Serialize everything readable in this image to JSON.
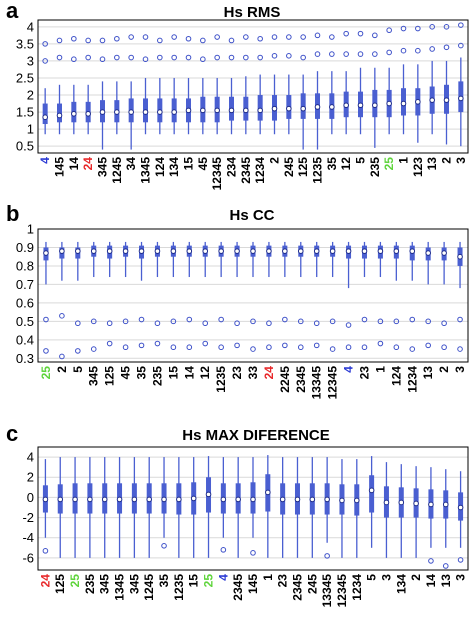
{
  "colors": {
    "box": "#4a5fd1",
    "outlier": "#3f52c9",
    "median_edge": "#1f2d8a",
    "highlight_red": "#e8282a",
    "highlight_green": "#5fd43c",
    "highlight_blue": "#2a39d4",
    "normal_label": "#000000"
  },
  "chart_data": [
    {
      "type": "box",
      "panel_letter": "a",
      "title": "Hs RMS",
      "ylim": [
        0.3,
        4.2
      ],
      "yticks": [
        0.5,
        1,
        1.5,
        2,
        2.5,
        3,
        3.5,
        4
      ],
      "grid": true,
      "categories": [
        "4",
        "145",
        "14",
        "24",
        "345",
        "1245",
        "34",
        "1345",
        "124",
        "134",
        "15",
        "45",
        "12345",
        "234",
        "2345",
        "1234",
        "2",
        "245",
        "125",
        "1235",
        "35",
        "12",
        "5",
        "235",
        "25",
        "1",
        "123",
        "13",
        "2",
        "3"
      ],
      "label_highlights": {
        "4": "blue",
        "24": "red",
        "25": "green"
      },
      "boxes": [
        {
          "wlo": 0.85,
          "q1": 1.15,
          "med": 1.35,
          "q3": 1.75,
          "whi": 2.2,
          "outliers": [
            3.0,
            3.5
          ]
        },
        {
          "wlo": 0.85,
          "q1": 1.2,
          "med": 1.4,
          "q3": 1.75,
          "whi": 2.3,
          "outliers": [
            3.1,
            3.6
          ]
        },
        {
          "wlo": 0.85,
          "q1": 1.2,
          "med": 1.45,
          "q3": 1.8,
          "whi": 2.3,
          "outliers": [
            3.05,
            3.65
          ]
        },
        {
          "wlo": 0.85,
          "q1": 1.2,
          "med": 1.45,
          "q3": 1.8,
          "whi": 2.3,
          "outliers": [
            3.1,
            3.6
          ]
        },
        {
          "wlo": 0.4,
          "q1": 1.2,
          "med": 1.5,
          "q3": 1.85,
          "whi": 2.4,
          "outliers": [
            3.05,
            3.6
          ]
        },
        {
          "wlo": 0.85,
          "q1": 1.2,
          "med": 1.5,
          "q3": 1.85,
          "whi": 2.4,
          "outliers": [
            3.1,
            3.65
          ]
        },
        {
          "wlo": 0.4,
          "q1": 1.2,
          "med": 1.5,
          "q3": 1.9,
          "whi": 2.4,
          "outliers": [
            3.1,
            3.7
          ]
        },
        {
          "wlo": 0.85,
          "q1": 1.2,
          "med": 1.5,
          "q3": 1.9,
          "whi": 2.5,
          "outliers": [
            3.05,
            3.7
          ]
        },
        {
          "wlo": 0.85,
          "q1": 1.2,
          "med": 1.5,
          "q3": 1.9,
          "whi": 2.5,
          "outliers": [
            3.1,
            3.6
          ]
        },
        {
          "wlo": 0.85,
          "q1": 1.2,
          "med": 1.5,
          "q3": 1.9,
          "whi": 2.5,
          "outliers": [
            3.1,
            3.7
          ]
        },
        {
          "wlo": 0.85,
          "q1": 1.2,
          "med": 1.55,
          "q3": 1.9,
          "whi": 2.5,
          "outliers": [
            3.1,
            3.65
          ]
        },
        {
          "wlo": 0.85,
          "q1": 1.2,
          "med": 1.55,
          "q3": 1.95,
          "whi": 2.5,
          "outliers": [
            3.05,
            3.6
          ]
        },
        {
          "wlo": 0.85,
          "q1": 1.2,
          "med": 1.55,
          "q3": 1.95,
          "whi": 2.5,
          "outliers": [
            3.1,
            3.7
          ]
        },
        {
          "wlo": 0.85,
          "q1": 1.25,
          "med": 1.55,
          "q3": 1.95,
          "whi": 2.5,
          "outliers": [
            3.1,
            3.6
          ]
        },
        {
          "wlo": 0.85,
          "q1": 1.25,
          "med": 1.55,
          "q3": 1.95,
          "whi": 2.55,
          "outliers": [
            3.1,
            3.7
          ]
        },
        {
          "wlo": 0.85,
          "q1": 1.25,
          "med": 1.55,
          "q3": 2.0,
          "whi": 2.6,
          "outliers": [
            3.1,
            3.65
          ]
        },
        {
          "wlo": 0.85,
          "q1": 1.25,
          "med": 1.6,
          "q3": 2.0,
          "whi": 2.6,
          "outliers": [
            3.15,
            3.7
          ]
        },
        {
          "wlo": 0.85,
          "q1": 1.3,
          "med": 1.6,
          "q3": 2.0,
          "whi": 2.6,
          "outliers": [
            3.15,
            3.7
          ]
        },
        {
          "wlo": 0.4,
          "q1": 1.3,
          "med": 1.6,
          "q3": 2.05,
          "whi": 2.6,
          "outliers": [
            3.1,
            3.7
          ]
        },
        {
          "wlo": 0.4,
          "q1": 1.3,
          "med": 1.65,
          "q3": 2.05,
          "whi": 2.7,
          "outliers": [
            3.2,
            3.75
          ]
        },
        {
          "wlo": 0.85,
          "q1": 1.3,
          "med": 1.65,
          "q3": 2.05,
          "whi": 2.7,
          "outliers": [
            3.2,
            3.7
          ]
        },
        {
          "wlo": 0.85,
          "q1": 1.35,
          "med": 1.7,
          "q3": 2.1,
          "whi": 2.7,
          "outliers": [
            3.2,
            3.8
          ]
        },
        {
          "wlo": 0.85,
          "q1": 1.35,
          "med": 1.7,
          "q3": 2.1,
          "whi": 2.8,
          "outliers": [
            3.2,
            3.8
          ]
        },
        {
          "wlo": 0.45,
          "q1": 1.35,
          "med": 1.7,
          "q3": 2.15,
          "whi": 2.8,
          "outliers": [
            3.2,
            3.75
          ]
        },
        {
          "wlo": 0.85,
          "q1": 1.35,
          "med": 1.75,
          "q3": 2.15,
          "whi": 2.8,
          "outliers": [
            3.25,
            3.9
          ]
        },
        {
          "wlo": 0.85,
          "q1": 1.4,
          "med": 1.75,
          "q3": 2.2,
          "whi": 2.9,
          "outliers": [
            3.3,
            3.95
          ]
        },
        {
          "wlo": 0.6,
          "q1": 1.4,
          "med": 1.8,
          "q3": 2.2,
          "whi": 2.9,
          "outliers": [
            3.3,
            3.95
          ]
        },
        {
          "wlo": 0.85,
          "q1": 1.45,
          "med": 1.85,
          "q3": 2.25,
          "whi": 3.0,
          "outliers": [
            3.35,
            4.0
          ]
        },
        {
          "wlo": 0.55,
          "q1": 1.45,
          "med": 1.85,
          "q3": 2.3,
          "whi": 3.0,
          "outliers": [
            3.4,
            4.0
          ]
        },
        {
          "wlo": 0.5,
          "q1": 1.5,
          "med": 1.9,
          "q3": 2.4,
          "whi": 3.1,
          "outliers": [
            3.45,
            4.05
          ]
        }
      ]
    },
    {
      "type": "box",
      "panel_letter": "b",
      "title": "Hs CC",
      "ylim": [
        0.28,
        1.0
      ],
      "yticks": [
        0.3,
        0.4,
        0.5,
        0.6,
        0.7,
        0.8,
        0.9,
        1
      ],
      "grid": true,
      "categories": [
        "25",
        "2",
        "5",
        "345",
        "125",
        "45",
        "35",
        "235",
        "15",
        "14",
        "12",
        "1235",
        "23",
        "33",
        "24",
        "2245",
        "2345",
        "13345",
        "12345",
        "4",
        "23",
        "1",
        "124",
        "1234",
        "13",
        "2",
        "3"
      ],
      "label_highlights": {
        "25": "green",
        "24": "red",
        "4": "blue"
      },
      "boxes": [
        {
          "wlo": 0.7,
          "q1": 0.83,
          "med": 0.87,
          "q3": 0.9,
          "whi": 0.93,
          "outliers": [
            0.51,
            0.34
          ]
        },
        {
          "wlo": 0.72,
          "q1": 0.84,
          "med": 0.88,
          "q3": 0.9,
          "whi": 0.93,
          "outliers": [
            0.53,
            0.31
          ]
        },
        {
          "wlo": 0.72,
          "q1": 0.84,
          "med": 0.88,
          "q3": 0.9,
          "whi": 0.93,
          "outliers": [
            0.49,
            0.34
          ]
        },
        {
          "wlo": 0.74,
          "q1": 0.85,
          "med": 0.88,
          "q3": 0.91,
          "whi": 0.93,
          "outliers": [
            0.5,
            0.35
          ]
        },
        {
          "wlo": 0.74,
          "q1": 0.84,
          "med": 0.88,
          "q3": 0.91,
          "whi": 0.93,
          "outliers": [
            0.49,
            0.38
          ]
        },
        {
          "wlo": 0.74,
          "q1": 0.85,
          "med": 0.88,
          "q3": 0.91,
          "whi": 0.93,
          "outliers": [
            0.5,
            0.36
          ]
        },
        {
          "wlo": 0.72,
          "q1": 0.84,
          "med": 0.88,
          "q3": 0.91,
          "whi": 0.93,
          "outliers": [
            0.51,
            0.37
          ]
        },
        {
          "wlo": 0.74,
          "q1": 0.85,
          "med": 0.88,
          "q3": 0.91,
          "whi": 0.93,
          "outliers": [
            0.49,
            0.38
          ]
        },
        {
          "wlo": 0.74,
          "q1": 0.85,
          "med": 0.88,
          "q3": 0.91,
          "whi": 0.93,
          "outliers": [
            0.5,
            0.36
          ]
        },
        {
          "wlo": 0.74,
          "q1": 0.85,
          "med": 0.88,
          "q3": 0.91,
          "whi": 0.93,
          "outliers": [
            0.51,
            0.36
          ]
        },
        {
          "wlo": 0.74,
          "q1": 0.85,
          "med": 0.88,
          "q3": 0.91,
          "whi": 0.93,
          "outliers": [
            0.49,
            0.38
          ]
        },
        {
          "wlo": 0.74,
          "q1": 0.85,
          "med": 0.88,
          "q3": 0.91,
          "whi": 0.93,
          "outliers": [
            0.51,
            0.36
          ]
        },
        {
          "wlo": 0.74,
          "q1": 0.85,
          "med": 0.88,
          "q3": 0.91,
          "whi": 0.93,
          "outliers": [
            0.49,
            0.37
          ]
        },
        {
          "wlo": 0.74,
          "q1": 0.85,
          "med": 0.88,
          "q3": 0.91,
          "whi": 0.93,
          "outliers": [
            0.5,
            0.35
          ]
        },
        {
          "wlo": 0.74,
          "q1": 0.85,
          "med": 0.88,
          "q3": 0.91,
          "whi": 0.93,
          "outliers": [
            0.49,
            0.36
          ]
        },
        {
          "wlo": 0.74,
          "q1": 0.85,
          "med": 0.88,
          "q3": 0.91,
          "whi": 0.93,
          "outliers": [
            0.51,
            0.37
          ]
        },
        {
          "wlo": 0.74,
          "q1": 0.85,
          "med": 0.88,
          "q3": 0.91,
          "whi": 0.93,
          "outliers": [
            0.5,
            0.36
          ]
        },
        {
          "wlo": 0.74,
          "q1": 0.85,
          "med": 0.88,
          "q3": 0.91,
          "whi": 0.93,
          "outliers": [
            0.49,
            0.37
          ]
        },
        {
          "wlo": 0.74,
          "q1": 0.85,
          "med": 0.88,
          "q3": 0.91,
          "whi": 0.93,
          "outliers": [
            0.5,
            0.35
          ]
        },
        {
          "wlo": 0.68,
          "q1": 0.84,
          "med": 0.88,
          "q3": 0.91,
          "whi": 0.93,
          "outliers": [
            0.48,
            0.36
          ]
        },
        {
          "wlo": 0.74,
          "q1": 0.84,
          "med": 0.88,
          "q3": 0.91,
          "whi": 0.93,
          "outliers": [
            0.51,
            0.36
          ]
        },
        {
          "wlo": 0.74,
          "q1": 0.84,
          "med": 0.88,
          "q3": 0.91,
          "whi": 0.93,
          "outliers": [
            0.5,
            0.38
          ]
        },
        {
          "wlo": 0.72,
          "q1": 0.84,
          "med": 0.88,
          "q3": 0.91,
          "whi": 0.93,
          "outliers": [
            0.5,
            0.36
          ]
        },
        {
          "wlo": 0.72,
          "q1": 0.83,
          "med": 0.88,
          "q3": 0.91,
          "whi": 0.93,
          "outliers": [
            0.51,
            0.35
          ]
        },
        {
          "wlo": 0.7,
          "q1": 0.83,
          "med": 0.87,
          "q3": 0.9,
          "whi": 0.93,
          "outliers": [
            0.5,
            0.37
          ]
        },
        {
          "wlo": 0.7,
          "q1": 0.83,
          "med": 0.87,
          "q3": 0.9,
          "whi": 0.93,
          "outliers": [
            0.49,
            0.36
          ]
        },
        {
          "wlo": 0.68,
          "q1": 0.8,
          "med": 0.85,
          "q3": 0.9,
          "whi": 0.93,
          "outliers": [
            0.51,
            0.35
          ]
        }
      ]
    },
    {
      "type": "box",
      "panel_letter": "c",
      "title": "Hs MAX DIFERENCE",
      "ylim": [
        -7.2,
        5
      ],
      "yticks": [
        -6,
        -4,
        -2,
        0,
        2,
        4
      ],
      "grid": true,
      "categories": [
        "24",
        "125",
        "25",
        "235",
        "345",
        "1345",
        "345",
        "1245",
        "35",
        "1235",
        "15",
        "25",
        "4",
        "2345",
        "145",
        "1",
        "23",
        "2345",
        "245",
        "13345",
        "12345",
        "1234",
        "5",
        "3",
        "134",
        "2",
        "14",
        "13",
        "3"
      ],
      "label_highlights": {
        "24": "red",
        "25": "green",
        "4": "blue"
      },
      "boxes": [
        {
          "wlo": -4.0,
          "q1": -1.5,
          "med": -0.2,
          "q3": 1.2,
          "whi": 3.8,
          "outliers": [
            -5.3
          ]
        },
        {
          "wlo": -6.0,
          "q1": -1.6,
          "med": -0.2,
          "q3": 1.3,
          "whi": 4.0,
          "outliers": []
        },
        {
          "wlo": -6.0,
          "q1": -1.6,
          "med": -0.2,
          "q3": 1.4,
          "whi": 4.0,
          "outliers": []
        },
        {
          "wlo": -6.0,
          "q1": -1.6,
          "med": -0.2,
          "q3": 1.4,
          "whi": 4.0,
          "outliers": []
        },
        {
          "wlo": -6.0,
          "q1": -1.6,
          "med": -0.2,
          "q3": 1.4,
          "whi": 4.0,
          "outliers": []
        },
        {
          "wlo": -6.0,
          "q1": -1.6,
          "med": -0.2,
          "q3": 1.4,
          "whi": 4.0,
          "outliers": []
        },
        {
          "wlo": -6.0,
          "q1": -1.6,
          "med": -0.2,
          "q3": 1.4,
          "whi": 4.0,
          "outliers": []
        },
        {
          "wlo": -6.0,
          "q1": -1.6,
          "med": -0.2,
          "q3": 1.4,
          "whi": 4.0,
          "outliers": []
        },
        {
          "wlo": -4.0,
          "q1": -1.6,
          "med": -0.2,
          "q3": 1.4,
          "whi": 4.0,
          "outliers": [
            -4.8
          ]
        },
        {
          "wlo": -6.0,
          "q1": -1.7,
          "med": -0.2,
          "q3": 1.4,
          "whi": 4.0,
          "outliers": []
        },
        {
          "wlo": -6.0,
          "q1": -1.7,
          "med": -0.1,
          "q3": 1.5,
          "whi": 4.0,
          "outliers": []
        },
        {
          "wlo": -6.0,
          "q1": -1.5,
          "med": 0.3,
          "q3": 2.0,
          "whi": 4.1,
          "outliers": []
        },
        {
          "wlo": -4.0,
          "q1": -1.6,
          "med": -0.2,
          "q3": 1.4,
          "whi": 4.0,
          "outliers": [
            -5.2
          ]
        },
        {
          "wlo": -6.0,
          "q1": -1.6,
          "med": -0.2,
          "q3": 1.4,
          "whi": 4.0,
          "outliers": []
        },
        {
          "wlo": -4.0,
          "q1": -1.6,
          "med": -0.2,
          "q3": 1.5,
          "whi": 4.0,
          "outliers": [
            -5.5
          ]
        },
        {
          "wlo": -6.0,
          "q1": -1.4,
          "med": 0.5,
          "q3": 2.3,
          "whi": 4.2,
          "outliers": []
        },
        {
          "wlo": -6.0,
          "q1": -1.7,
          "med": -0.2,
          "q3": 1.4,
          "whi": 4.0,
          "outliers": []
        },
        {
          "wlo": -6.0,
          "q1": -1.7,
          "med": -0.2,
          "q3": 1.4,
          "whi": 4.0,
          "outliers": []
        },
        {
          "wlo": -6.0,
          "q1": -1.7,
          "med": -0.2,
          "q3": 1.4,
          "whi": 4.0,
          "outliers": []
        },
        {
          "wlo": -4.5,
          "q1": -1.7,
          "med": -0.2,
          "q3": 1.4,
          "whi": 4.0,
          "outliers": [
            -5.8
          ]
        },
        {
          "wlo": -6.0,
          "q1": -1.7,
          "med": -0.3,
          "q3": 1.3,
          "whi": 3.8,
          "outliers": []
        },
        {
          "wlo": -6.0,
          "q1": -1.8,
          "med": -0.3,
          "q3": 1.3,
          "whi": 3.8,
          "outliers": []
        },
        {
          "wlo": -5.0,
          "q1": -1.5,
          "med": 0.7,
          "q3": 2.2,
          "whi": 4.1,
          "outliers": []
        },
        {
          "wlo": -6.0,
          "q1": -2.0,
          "med": -0.5,
          "q3": 1.1,
          "whi": 3.5,
          "outliers": []
        },
        {
          "wlo": -6.0,
          "q1": -2.0,
          "med": -0.5,
          "q3": 1.0,
          "whi": 3.3,
          "outliers": []
        },
        {
          "wlo": -6.0,
          "q1": -2.0,
          "med": -0.6,
          "q3": 0.9,
          "whi": 3.1,
          "outliers": []
        },
        {
          "wlo": -5.0,
          "q1": -2.1,
          "med": -0.7,
          "q3": 0.8,
          "whi": 3.0,
          "outliers": [
            -6.3
          ]
        },
        {
          "wlo": -5.0,
          "q1": -2.1,
          "med": -0.7,
          "q3": 0.7,
          "whi": 2.8,
          "outliers": [
            -6.8
          ]
        },
        {
          "wlo": -5.0,
          "q1": -2.3,
          "med": -1.0,
          "q3": 0.5,
          "whi": 2.6,
          "outliers": [
            -6.2
          ]
        }
      ]
    }
  ]
}
